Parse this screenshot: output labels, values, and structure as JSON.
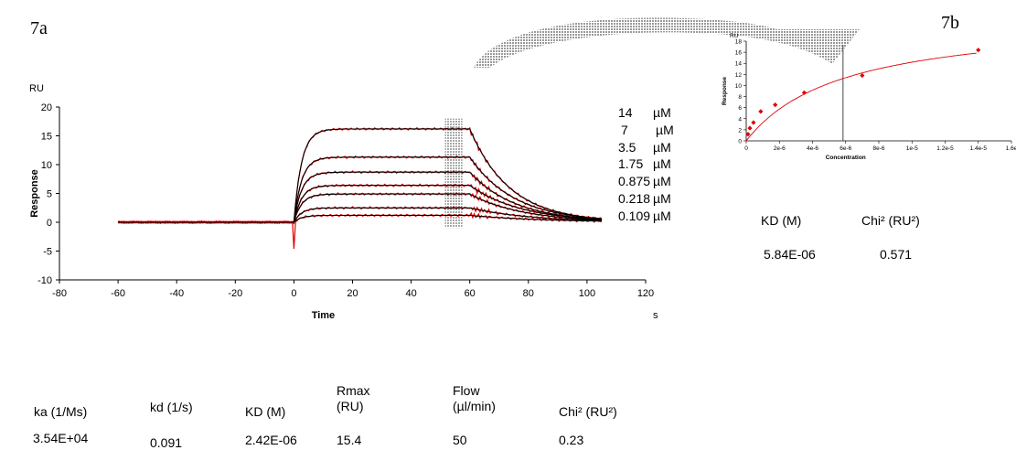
{
  "panel_a_label": "7a",
  "panel_b_label": "7b",
  "concentration_labels": [
    {
      "value": "14",
      "unit": "µM"
    },
    {
      "value": "7",
      "unit": "µM"
    },
    {
      "value": "3.5",
      "unit": "µM"
    },
    {
      "value": "1.75",
      "unit": "µM"
    },
    {
      "value": "0.875",
      "unit": "µM"
    },
    {
      "value": "0.218",
      "unit": "µM"
    },
    {
      "value": "0.109",
      "unit": "µM"
    }
  ],
  "steady_state_table": {
    "headers": [
      "KD (M)",
      "Chi² (RU²)"
    ],
    "values": [
      "5.84E-06",
      "0.571"
    ]
  },
  "kinetics_table": {
    "headers": [
      "ka (1/Ms)",
      "kd (1/s)",
      "KD (M)",
      "Rmax\n(RU)",
      "Flow\n(µl/min)",
      "Chi² (RU²)"
    ],
    "values": [
      "3.54E+04",
      "0.091",
      "2.42E-06",
      "15.4",
      "50",
      "0.23"
    ]
  },
  "colors": {
    "fit": "#000000",
    "data": "#e00000",
    "shade": "#9a9a9a"
  },
  "chart_data": [
    {
      "type": "line",
      "title": "",
      "unit_label": "RU",
      "xlabel": "Time",
      "x_unit": "s",
      "ylabel": "Response",
      "xlim": [
        -80,
        120
      ],
      "ylim": [
        -10,
        20
      ],
      "xticks": [
        -80,
        -60,
        -40,
        -20,
        0,
        20,
        40,
        60,
        80,
        100,
        120
      ],
      "yticks": [
        -10,
        -5,
        0,
        5,
        10,
        15,
        20
      ],
      "injection_start": 0,
      "injection_end": 60,
      "time_end": 105,
      "series": [
        {
          "concentration_uM": 14,
          "plateau": 16.2,
          "end_value": 0.6
        },
        {
          "concentration_uM": 7,
          "plateau": 11.3,
          "end_value": 0.6
        },
        {
          "concentration_uM": 3.5,
          "plateau": 8.7,
          "end_value": 0.5
        },
        {
          "concentration_uM": 1.75,
          "plateau": 6.4,
          "end_value": 0.5
        },
        {
          "concentration_uM": 0.875,
          "plateau": 4.9,
          "end_value": 0.4
        },
        {
          "concentration_uM": 0.218,
          "plateau": 2.5,
          "end_value": 0.3
        },
        {
          "concentration_uM": 0.109,
          "plateau": 1.2,
          "end_value": 0.2
        }
      ]
    },
    {
      "type": "scatter",
      "title": "",
      "unit_label": "RU",
      "xlabel": "Concentration",
      "ylabel": "Response",
      "xlim": [
        0,
        1.6e-05
      ],
      "ylim": [
        0,
        18
      ],
      "xticks": [
        0,
        2e-06,
        4e-06,
        6e-06,
        8e-06,
        1e-05,
        1.2e-05,
        1.4e-05,
        1.6e-05
      ],
      "xtick_labels": [
        "0",
        "2e-6",
        "4e-6",
        "6e-6",
        "8e-6",
        "1e-5",
        "1.2e-5",
        "1.4e-5",
        "1.6e"
      ],
      "yticks": [
        0,
        2,
        4,
        6,
        8,
        10,
        12,
        14,
        16,
        18
      ],
      "kd_marker": 5.84e-06,
      "fit": {
        "model": "steady_state_affinity",
        "Rmax": 22.5,
        "KD": 5.84e-06
      },
      "points": [
        {
          "x": 1.09e-07,
          "y": 1.2
        },
        {
          "x": 2.18e-07,
          "y": 2.3
        },
        {
          "x": 4.37e-07,
          "y": 3.3
        },
        {
          "x": 8.75e-07,
          "y": 5.3
        },
        {
          "x": 1.75e-06,
          "y": 6.5
        },
        {
          "x": 3.5e-06,
          "y": 8.7
        },
        {
          "x": 7e-06,
          "y": 11.8
        },
        {
          "x": 1.4e-05,
          "y": 16.4
        }
      ]
    }
  ]
}
